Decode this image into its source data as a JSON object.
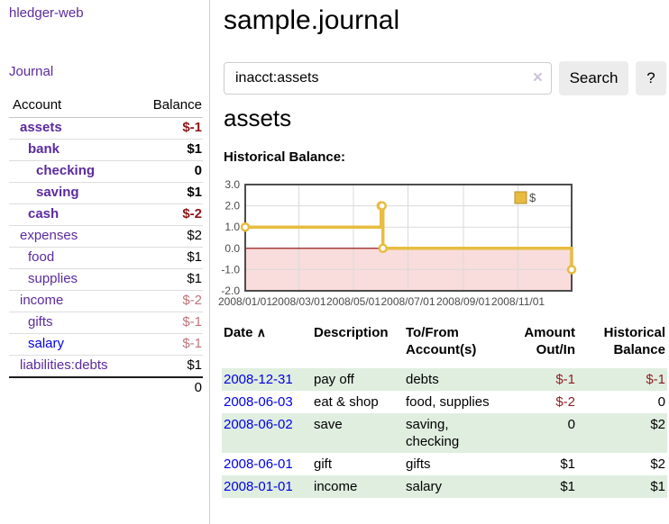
{
  "brand": "hledger-web",
  "sidebar": {
    "journal_link": "Journal",
    "accounts_header": {
      "account": "Account",
      "balance": "Balance"
    },
    "accounts": [
      {
        "name": "assets",
        "balance": "$-1"
      },
      {
        "name": "bank",
        "balance": "$1"
      },
      {
        "name": "checking",
        "balance": "0"
      },
      {
        "name": "saving",
        "balance": "$1"
      },
      {
        "name": "cash",
        "balance": "$-2"
      },
      {
        "name": "expenses",
        "balance": "$2"
      },
      {
        "name": "food",
        "balance": "$1"
      },
      {
        "name": "supplies",
        "balance": "$1"
      },
      {
        "name": "income",
        "balance": "$-2"
      },
      {
        "name": "gifts",
        "balance": "$-1"
      },
      {
        "name": "salary",
        "balance": "$-1"
      },
      {
        "name": "liabilities:debts",
        "balance": "$1"
      }
    ],
    "total": "0"
  },
  "header": {
    "title": "sample.journal"
  },
  "search": {
    "value": "inacct:assets",
    "clear_icon": "×",
    "button_label": "Search",
    "help_label": "?"
  },
  "main": {
    "account_title": "assets",
    "chart_title": "Historical Balance:"
  },
  "chart_data": {
    "type": "line",
    "step": true,
    "title": "Historical Balance:",
    "series": [
      {
        "name": "$",
        "points": [
          {
            "date": "2008-01-01",
            "value": 1.0
          },
          {
            "date": "2008-06-01",
            "value": 2.0
          },
          {
            "date": "2008-06-02",
            "value": 2.0
          },
          {
            "date": "2008-06-03",
            "value": 0.0
          },
          {
            "date": "2008-12-31",
            "value": -1.0
          }
        ]
      }
    ],
    "xlim": [
      "2008-01-01",
      "2008-12-31"
    ],
    "ylim": [
      -2.0,
      3.0
    ],
    "yticks": [
      {
        "label": "3.0",
        "value": 3
      },
      {
        "label": "2.0",
        "value": 2
      },
      {
        "label": "1.0",
        "value": 1
      },
      {
        "label": "0.0",
        "value": 0
      },
      {
        "label": "-1.0",
        "value": -1
      },
      {
        "label": "-2.0",
        "value": -2
      }
    ],
    "xticks": [
      {
        "label": "2008/01/01",
        "date": "2008-01-01"
      },
      {
        "label": "2008/03/01",
        "date": "2008-03-01"
      },
      {
        "label": "2008/05/01",
        "date": "2008-05-01"
      },
      {
        "label": "2008/07/01",
        "date": "2008-07-01"
      },
      {
        "label": "2008/09/01",
        "date": "2008-09-01"
      },
      {
        "label": "2008/11/01",
        "date": "2008-11-01"
      }
    ],
    "legend_position": "top-right",
    "grid": true,
    "colors": {
      "line": "#E8BC40",
      "marker_fill": "#FFFFFF",
      "negative_fill": "#F9DCDC",
      "zero_line": "#8B0000",
      "grid": "#DADADA",
      "border": "#4D4D4D",
      "tick_text": "#4A4A4A"
    }
  },
  "register": {
    "headers": {
      "date": "Date",
      "sort_icon": "∧",
      "description": "Description",
      "accounts_1": "To/From",
      "accounts_2": "Account(s)",
      "amount_1": "Amount",
      "amount_2": "Out/In",
      "balance_1": "Historical",
      "balance_2": "Balance"
    },
    "rows": [
      {
        "date": "2008-12-31",
        "description": "pay off",
        "accounts": "debts",
        "amount": "$-1",
        "balance": "$-1"
      },
      {
        "date": "2008-06-03",
        "description": "eat & shop",
        "accounts": "food, supplies",
        "amount": "$-2",
        "balance": "0"
      },
      {
        "date": "2008-06-02",
        "description": "save",
        "accounts": "saving, checking",
        "amount": "0",
        "balance": "$2"
      },
      {
        "date": "2008-06-01",
        "description": "gift",
        "accounts": "gifts",
        "amount": "$1",
        "balance": "$2"
      },
      {
        "date": "2008-01-01",
        "description": "income",
        "accounts": "salary",
        "amount": "$1",
        "balance": "$1"
      }
    ]
  }
}
